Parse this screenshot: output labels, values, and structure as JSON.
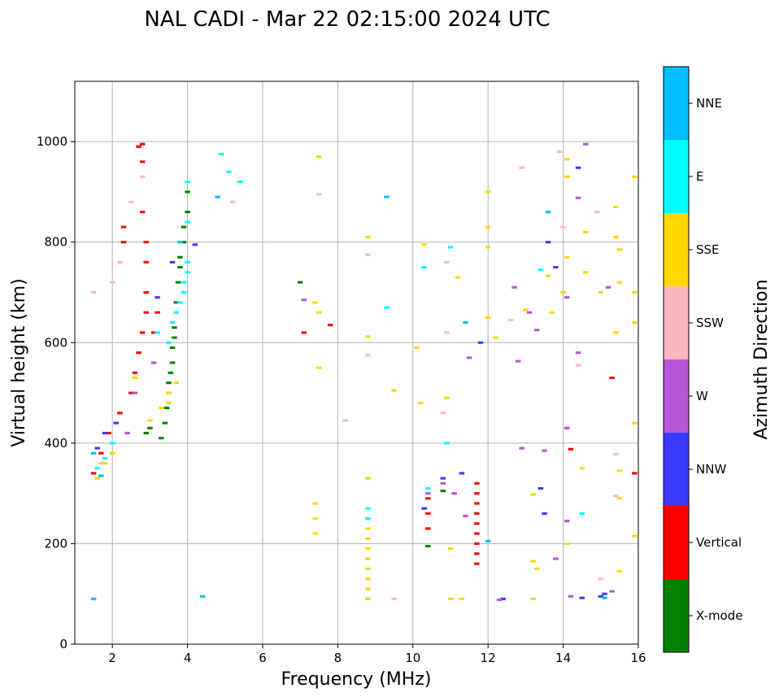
{
  "chart_data": {
    "type": "scatter",
    "title": "NAL CADI - Mar 22 02:15:00 2024 UTC",
    "xlabel": "Frequency (MHz)",
    "ylabel": "Virtual height (km)",
    "xlim": [
      1,
      16
    ],
    "ylim": [
      0,
      1120
    ],
    "xticks": [
      2,
      4,
      6,
      8,
      10,
      12,
      14,
      16
    ],
    "yticks": [
      0,
      200,
      400,
      600,
      800,
      1000
    ],
    "grid": true,
    "colorbar": {
      "label": "Azimuth Direction",
      "categories": [
        {
          "name": "X-mode",
          "color": "#008000"
        },
        {
          "name": "Vertical",
          "color": "#ff0000"
        },
        {
          "name": "NNW",
          "color": "#3a3aff"
        },
        {
          "name": "W",
          "color": "#b557d6"
        },
        {
          "name": "SSW",
          "color": "#ffb6c1"
        },
        {
          "name": "SSE",
          "color": "#ffd700"
        },
        {
          "name": "E",
          "color": "#00ffff"
        },
        {
          "name": "NNE",
          "color": "#00bfff"
        }
      ]
    },
    "series": [
      {
        "name": "X-mode",
        "points": [
          [
            3.3,
            410
          ],
          [
            3.4,
            440
          ],
          [
            3.45,
            470
          ],
          [
            3.5,
            500
          ],
          [
            3.5,
            520
          ],
          [
            3.55,
            540
          ],
          [
            3.6,
            560
          ],
          [
            3.6,
            590
          ],
          [
            3.65,
            610
          ],
          [
            3.65,
            630
          ],
          [
            3.7,
            680
          ],
          [
            3.75,
            720
          ],
          [
            3.8,
            750
          ],
          [
            3.8,
            770
          ],
          [
            3.9,
            800
          ],
          [
            3.9,
            830
          ],
          [
            4.0,
            860
          ],
          [
            4.0,
            900
          ],
          [
            2.9,
            420
          ],
          [
            3.0,
            430
          ],
          [
            7.0,
            720
          ],
          [
            10.4,
            195
          ],
          [
            10.8,
            305
          ]
        ]
      },
      {
        "name": "Vertical",
        "points": [
          [
            1.5,
            340
          ],
          [
            1.7,
            380
          ],
          [
            1.9,
            420
          ],
          [
            2.2,
            460
          ],
          [
            2.5,
            500
          ],
          [
            2.6,
            540
          ],
          [
            2.7,
            580
          ],
          [
            2.8,
            620
          ],
          [
            2.9,
            660
          ],
          [
            2.9,
            700
          ],
          [
            2.9,
            760
          ],
          [
            2.9,
            800
          ],
          [
            2.8,
            860
          ],
          [
            2.8,
            960
          ],
          [
            2.8,
            995
          ],
          [
            2.7,
            990
          ],
          [
            2.3,
            830
          ],
          [
            2.3,
            800
          ],
          [
            3.1,
            620
          ],
          [
            3.2,
            660
          ],
          [
            7.1,
            620
          ],
          [
            7.8,
            635
          ],
          [
            10.4,
            230
          ],
          [
            10.4,
            260
          ],
          [
            10.4,
            290
          ],
          [
            11.7,
            160
          ],
          [
            11.7,
            180
          ],
          [
            11.7,
            200
          ],
          [
            11.7,
            220
          ],
          [
            11.7,
            240
          ],
          [
            11.7,
            260
          ],
          [
            11.7,
            280
          ],
          [
            11.7,
            300
          ],
          [
            11.7,
            320
          ],
          [
            14.2,
            388
          ],
          [
            15.3,
            530
          ],
          [
            15.9,
            340
          ]
        ]
      },
      {
        "name": "NNW",
        "points": [
          [
            1.6,
            390
          ],
          [
            1.8,
            420
          ],
          [
            2.1,
            440
          ],
          [
            3.2,
            690
          ],
          [
            3.6,
            760
          ],
          [
            4.2,
            795
          ],
          [
            10.3,
            270
          ],
          [
            10.8,
            330
          ],
          [
            11.3,
            340
          ],
          [
            11.8,
            600
          ],
          [
            12.4,
            90
          ],
          [
            13.4,
            310
          ],
          [
            13.5,
            260
          ],
          [
            13.6,
            800
          ],
          [
            13.8,
            750
          ],
          [
            14.4,
            948
          ],
          [
            14.5,
            92
          ],
          [
            15.0,
            95
          ],
          [
            15.1,
            100
          ]
        ]
      },
      {
        "name": "W",
        "points": [
          [
            2.4,
            420
          ],
          [
            2.6,
            500
          ],
          [
            3.1,
            560
          ],
          [
            7.1,
            685
          ],
          [
            8.8,
            90
          ],
          [
            10.4,
            300
          ],
          [
            10.8,
            320
          ],
          [
            11.1,
            300
          ],
          [
            11.4,
            255
          ],
          [
            11.5,
            570
          ],
          [
            12.3,
            88
          ],
          [
            12.7,
            710
          ],
          [
            12.8,
            563
          ],
          [
            12.9,
            390
          ],
          [
            13.1,
            660
          ],
          [
            13.3,
            625
          ],
          [
            13.5,
            385
          ],
          [
            13.8,
            170
          ],
          [
            14.1,
            690
          ],
          [
            14.1,
            245
          ],
          [
            14.1,
            430
          ],
          [
            14.2,
            95
          ],
          [
            14.4,
            580
          ],
          [
            14.4,
            888
          ],
          [
            14.6,
            995
          ],
          [
            15.2,
            710
          ],
          [
            15.3,
            105
          ]
        ]
      },
      {
        "name": "SSW",
        "points": [
          [
            1.5,
            700
          ],
          [
            1.7,
            360
          ],
          [
            2.0,
            720
          ],
          [
            2.2,
            760
          ],
          [
            2.5,
            880
          ],
          [
            2.8,
            930
          ],
          [
            5.2,
            880
          ],
          [
            7.5,
            895
          ],
          [
            8.2,
            445
          ],
          [
            8.8,
            575
          ],
          [
            8.8,
            775
          ],
          [
            9.5,
            90
          ],
          [
            10.8,
            460
          ],
          [
            10.9,
            620
          ],
          [
            10.9,
            760
          ],
          [
            12.6,
            645
          ],
          [
            12.9,
            948
          ],
          [
            13.9,
            980
          ],
          [
            14.0,
            830
          ],
          [
            14.4,
            555
          ],
          [
            14.9,
            860
          ],
          [
            15.0,
            130
          ],
          [
            15.4,
            378
          ],
          [
            15.4,
            295
          ]
        ]
      },
      {
        "name": "SSE",
        "points": [
          [
            1.6,
            330
          ],
          [
            1.8,
            360
          ],
          [
            2.0,
            380
          ],
          [
            2.6,
            530
          ],
          [
            3.0,
            445
          ],
          [
            3.3,
            470
          ],
          [
            3.5,
            480
          ],
          [
            3.5,
            500
          ],
          [
            3.7,
            520
          ],
          [
            7.5,
            970
          ],
          [
            7.4,
            680
          ],
          [
            7.5,
            660
          ],
          [
            7.5,
            550
          ],
          [
            7.4,
            280
          ],
          [
            7.4,
            250
          ],
          [
            7.4,
            220
          ],
          [
            8.8,
            90
          ],
          [
            8.8,
            110
          ],
          [
            8.8,
            130
          ],
          [
            8.8,
            150
          ],
          [
            8.8,
            170
          ],
          [
            8.8,
            190
          ],
          [
            8.8,
            210
          ],
          [
            8.8,
            230
          ],
          [
            8.8,
            330
          ],
          [
            8.8,
            612
          ],
          [
            8.8,
            810
          ],
          [
            9.5,
            505
          ],
          [
            10.1,
            590
          ],
          [
            10.2,
            480
          ],
          [
            10.3,
            795
          ],
          [
            10.9,
            490
          ],
          [
            11.0,
            190
          ],
          [
            11.0,
            90
          ],
          [
            11.3,
            90
          ],
          [
            11.2,
            730
          ],
          [
            12.0,
            900
          ],
          [
            12.0,
            830
          ],
          [
            12.0,
            790
          ],
          [
            12.0,
            650
          ],
          [
            12.2,
            610
          ],
          [
            13.0,
            665
          ],
          [
            13.2,
            298
          ],
          [
            13.2,
            165
          ],
          [
            13.3,
            150
          ],
          [
            13.2,
            90
          ],
          [
            13.6,
            733
          ],
          [
            13.7,
            660
          ],
          [
            14.0,
            700
          ],
          [
            14.1,
            770
          ],
          [
            14.1,
            965
          ],
          [
            14.1,
            930
          ],
          [
            14.1,
            200
          ],
          [
            14.5,
            350
          ],
          [
            14.6,
            740
          ],
          [
            14.6,
            820
          ],
          [
            15.0,
            700
          ],
          [
            15.4,
            870
          ],
          [
            15.4,
            810
          ],
          [
            15.5,
            785
          ],
          [
            15.5,
            720
          ],
          [
            15.4,
            620
          ],
          [
            15.5,
            345
          ],
          [
            15.5,
            290
          ],
          [
            15.5,
            145
          ],
          [
            15.9,
            930
          ],
          [
            15.9,
            700
          ],
          [
            15.9,
            640
          ],
          [
            15.9,
            440
          ],
          [
            15.9,
            215
          ]
        ]
      },
      {
        "name": "E",
        "points": [
          [
            1.6,
            350
          ],
          [
            1.8,
            370
          ],
          [
            2.0,
            400
          ],
          [
            3.2,
            620
          ],
          [
            3.5,
            600
          ],
          [
            3.6,
            640
          ],
          [
            3.7,
            660
          ],
          [
            3.8,
            680
          ],
          [
            3.9,
            700
          ],
          [
            3.9,
            720
          ],
          [
            4.0,
            740
          ],
          [
            4.0,
            760
          ],
          [
            4.0,
            840
          ],
          [
            4.0,
            920
          ],
          [
            4.8,
            890
          ],
          [
            4.9,
            975
          ],
          [
            5.1,
            940
          ],
          [
            5.4,
            920
          ],
          [
            8.8,
            270
          ],
          [
            8.8,
            250
          ],
          [
            9.3,
            670
          ],
          [
            10.3,
            750
          ],
          [
            10.4,
            310
          ],
          [
            10.9,
            400
          ],
          [
            11.0,
            790
          ],
          [
            13.4,
            745
          ],
          [
            14.5,
            260
          ]
        ]
      },
      {
        "name": "NNE",
        "points": [
          [
            1.5,
            90
          ],
          [
            1.5,
            380
          ],
          [
            1.7,
            335
          ],
          [
            3.8,
            800
          ],
          [
            4.4,
            95
          ],
          [
            4.8,
            890
          ],
          [
            9.3,
            890
          ],
          [
            11.4,
            640
          ],
          [
            12.0,
            205
          ],
          [
            13.6,
            860
          ],
          [
            15.1,
            92
          ]
        ]
      }
    ]
  }
}
